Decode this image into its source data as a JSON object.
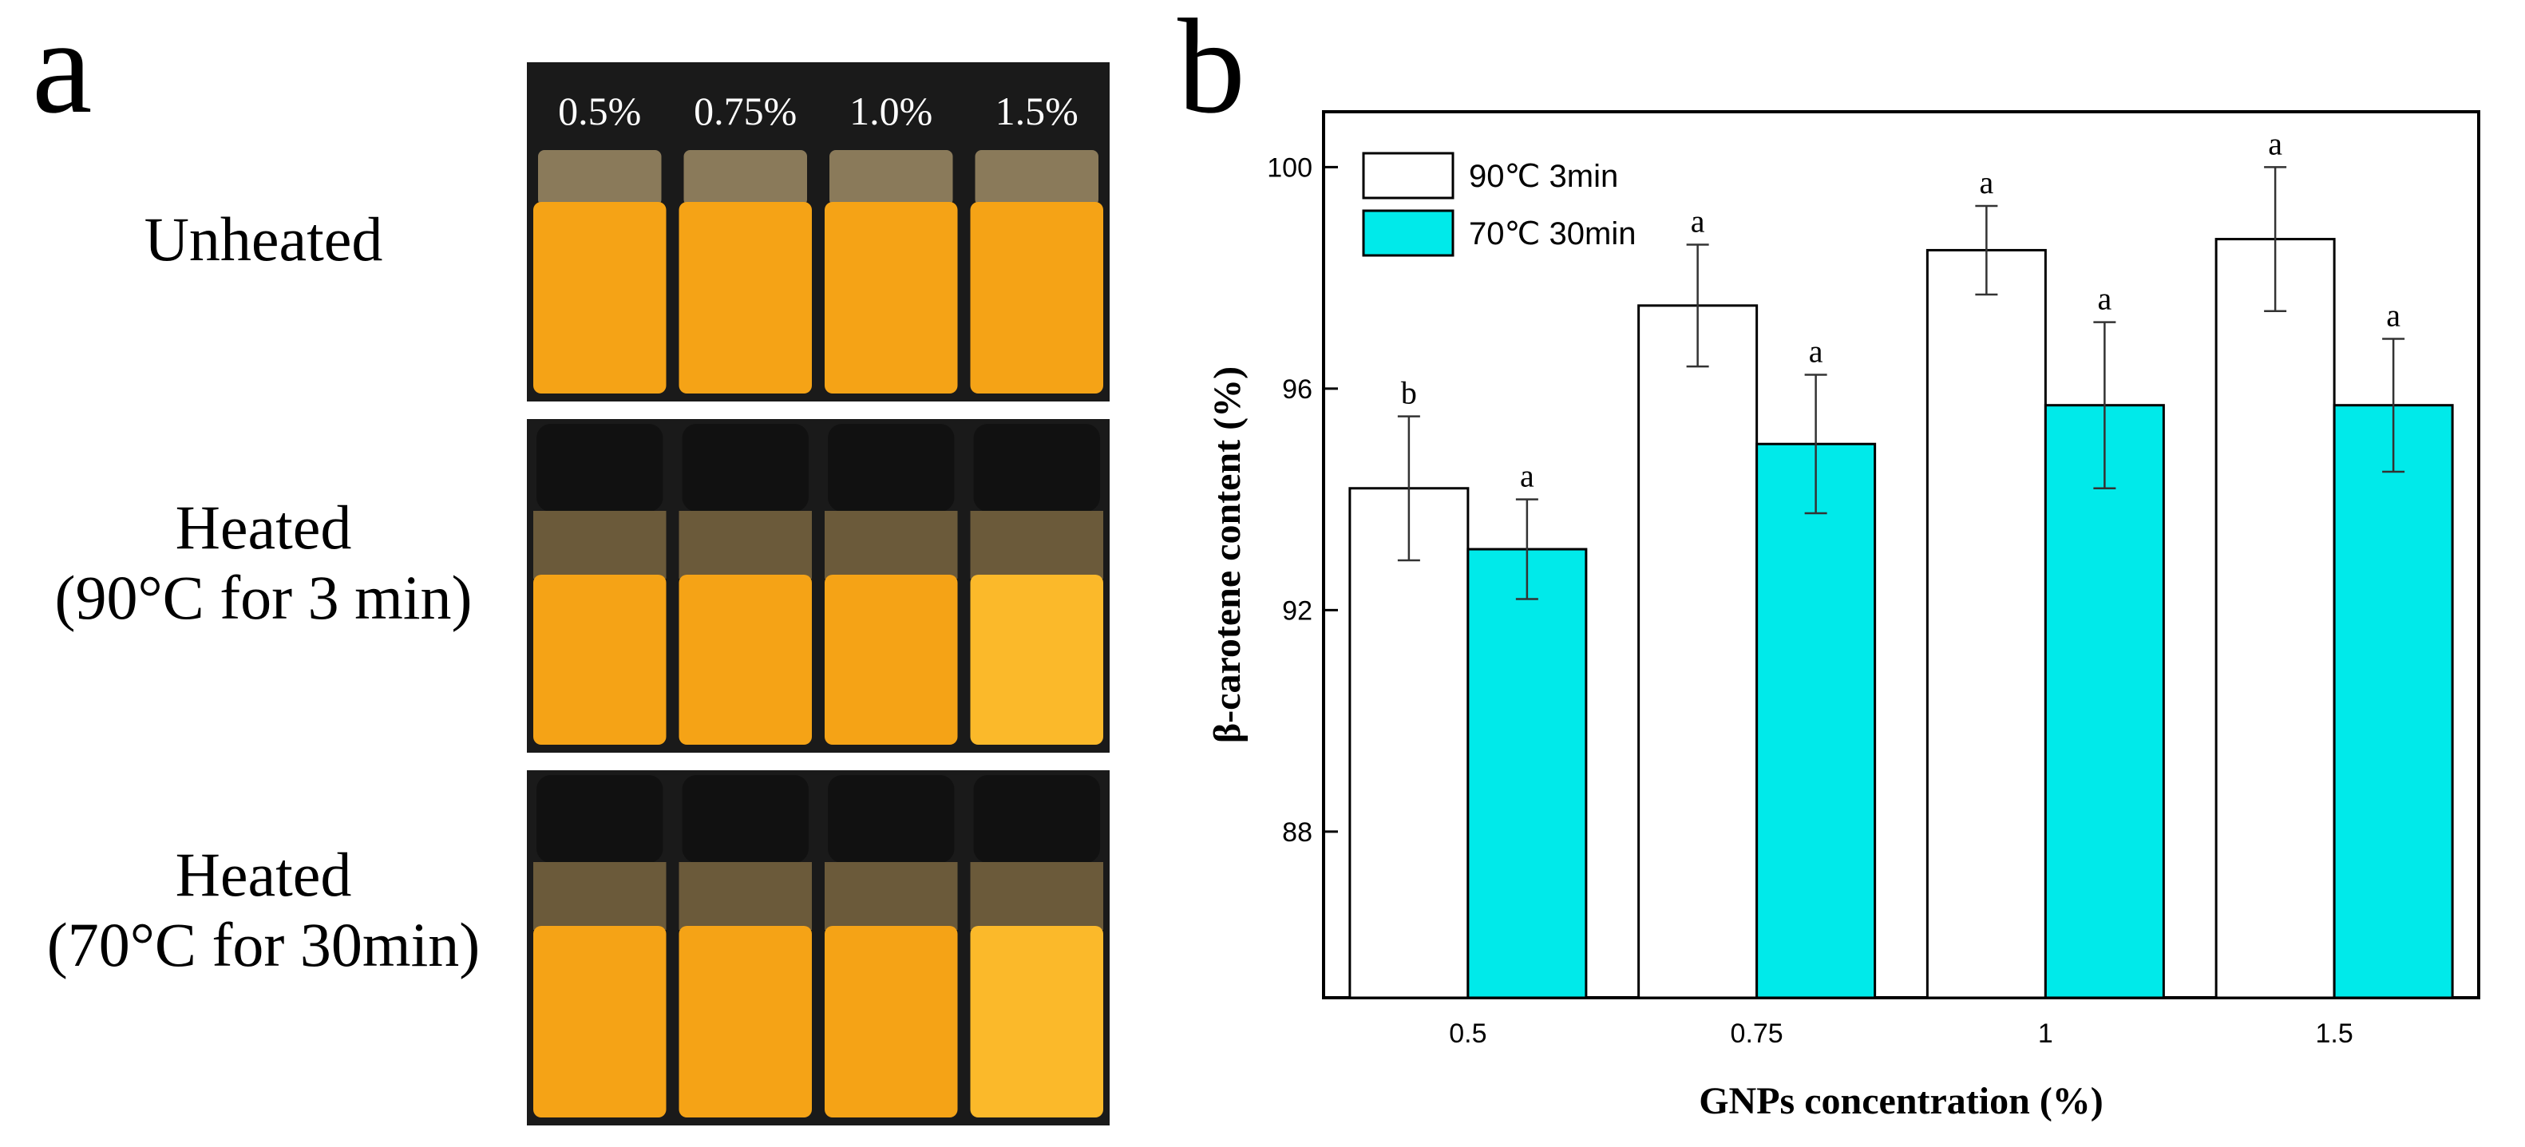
{
  "panel_a": {
    "letter": "a",
    "concentrations": [
      "0.5%",
      "0.75%",
      "1.0%",
      "1.5%"
    ],
    "rows": [
      {
        "label_lines": [
          "Unheated"
        ],
        "capped": false
      },
      {
        "label_lines": [
          "Heated",
          "(90°C for 3 min)"
        ],
        "capped": true
      },
      {
        "label_lines": [
          "Heated",
          "(70°C for 30min)"
        ],
        "capped": true
      }
    ],
    "colors": {
      "liquid": "#f5a316",
      "liquid_light": "#fbb92a",
      "cap": "#111111",
      "background": "#1a1a1a"
    }
  },
  "panel_b": {
    "letter": "b"
  },
  "chart_data": {
    "type": "bar",
    "categories": [
      "0.5",
      "0.75",
      "1",
      "1.5"
    ],
    "series": [
      {
        "name": "90℃ 3min",
        "color": "#ffffff",
        "values": [
          94.2,
          97.5,
          98.5,
          98.7
        ],
        "errors": [
          1.3,
          1.1,
          0.8,
          1.3
        ],
        "sig": [
          "b",
          "a",
          "a",
          "a"
        ]
      },
      {
        "name": "70℃ 30min",
        "color": "#00eaea",
        "values": [
          93.1,
          95.0,
          95.7,
          95.7
        ],
        "errors": [
          0.9,
          1.25,
          1.5,
          1.2
        ],
        "sig": [
          "a",
          "a",
          "a",
          "a"
        ]
      }
    ],
    "title": "",
    "xlabel": "GNPs concentration (%)",
    "ylabel": "β-carotene content (%)",
    "ylim": [
      85,
      101
    ],
    "yticks": [
      88,
      92,
      96,
      100
    ],
    "legend_position": "top-left"
  }
}
